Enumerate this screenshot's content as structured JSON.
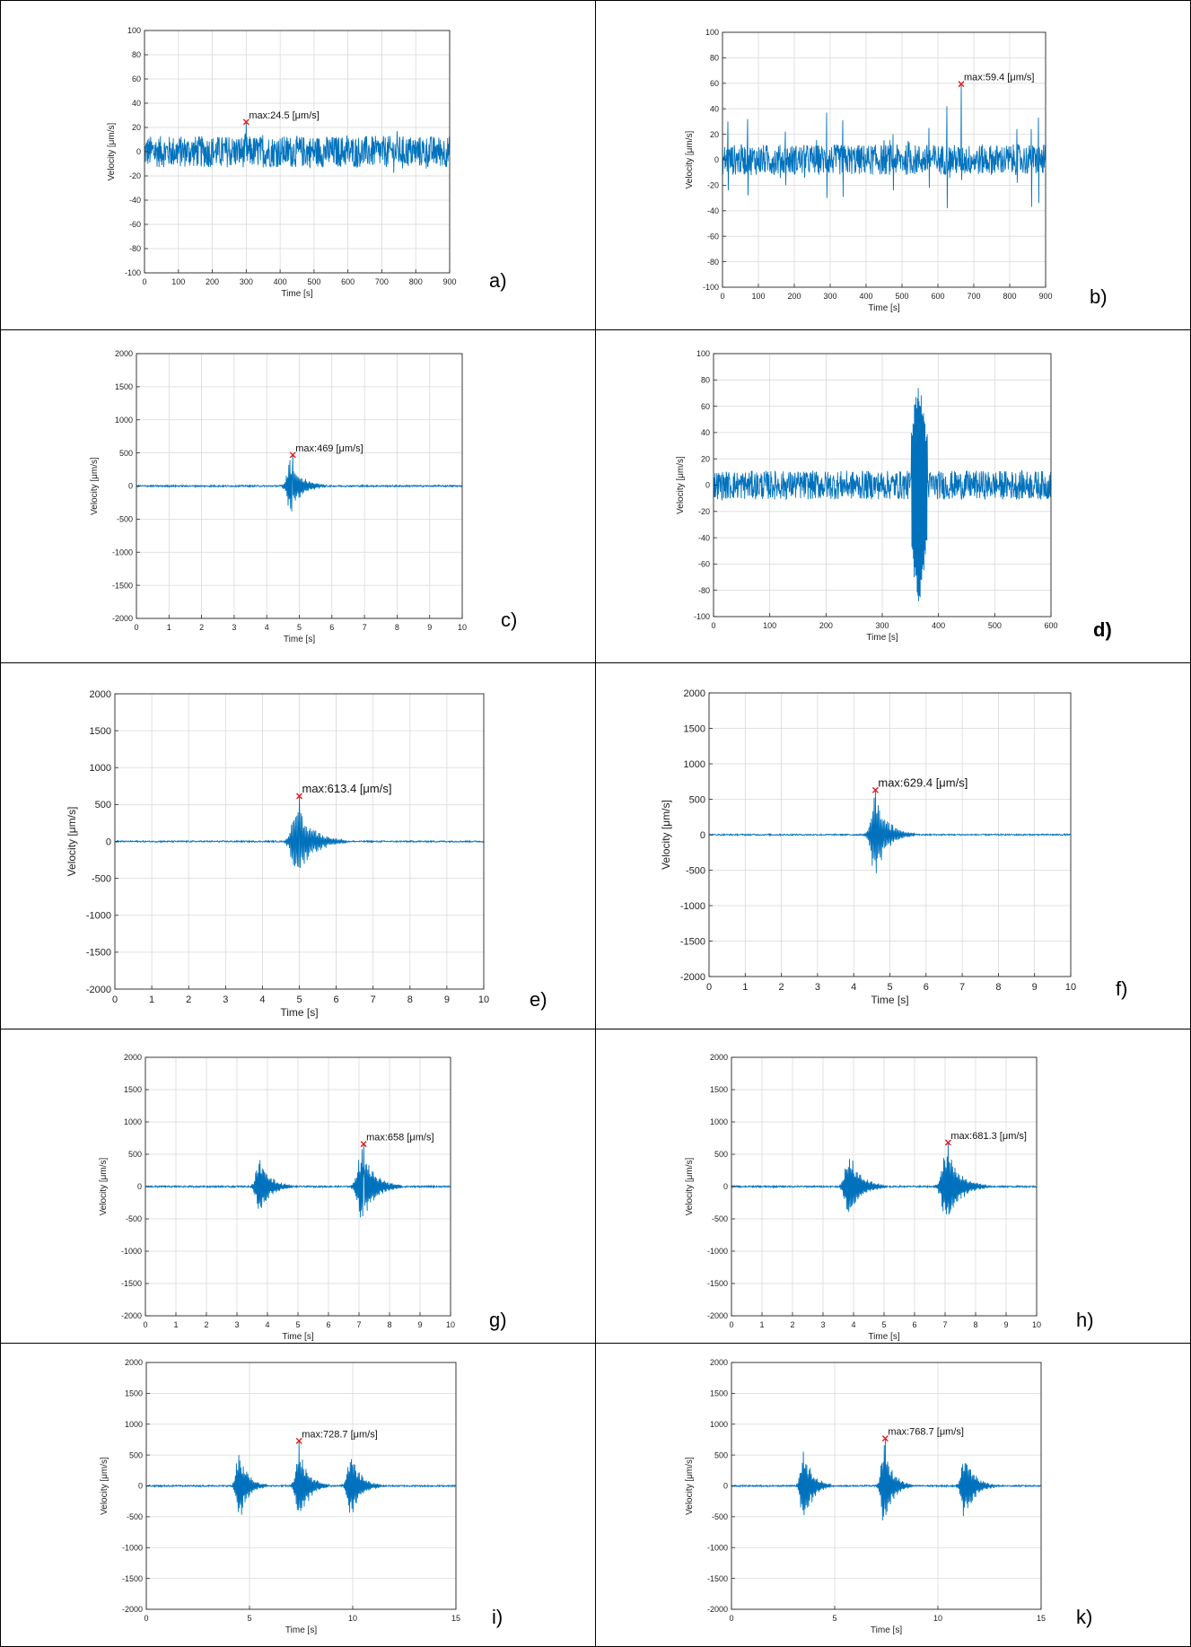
{
  "colors": {
    "signal": "#0072bd",
    "marker": "#e41a1c",
    "grid": "#d9d9d9",
    "axis": "#262626",
    "border": "#000000"
  },
  "chart_data": [
    {
      "id": "a",
      "panel_label": "a)",
      "label_bold": false,
      "type": "line",
      "xlabel": "Time [s]",
      "ylabel": "Velocity [μm/s]",
      "xlim": [
        0,
        900
      ],
      "ylim": [
        -100,
        100
      ],
      "xticks": [
        0,
        100,
        200,
        300,
        400,
        500,
        600,
        700,
        800,
        900
      ],
      "yticks": [
        -100,
        -80,
        -60,
        -40,
        -20,
        0,
        20,
        40,
        60,
        80,
        100
      ],
      "annotation": "max:24.5 [μm/s]",
      "max_point": {
        "x": 300,
        "y": 24.5
      },
      "signal": {
        "kind": "noise",
        "amp": 13,
        "spikes": []
      }
    },
    {
      "id": "b",
      "panel_label": "b)",
      "label_bold": false,
      "type": "line",
      "xlabel": "Time [s]",
      "ylabel": "Velocity [μm/s]",
      "xlim": [
        0,
        900
      ],
      "ylim": [
        -100,
        100
      ],
      "xticks": [
        0,
        100,
        200,
        300,
        400,
        500,
        600,
        700,
        800,
        900
      ],
      "yticks": [
        -100,
        -80,
        -60,
        -40,
        -20,
        0,
        20,
        40,
        60,
        80,
        100
      ],
      "annotation": "max:59.4 [μm/s]",
      "max_point": {
        "x": 665,
        "y": 59.4
      },
      "signal": {
        "kind": "noise",
        "amp": 12,
        "spikes": [
          [
            15,
            30,
            -24
          ],
          [
            70,
            32,
            -28
          ],
          [
            175,
            22,
            -20
          ],
          [
            290,
            37,
            -30
          ],
          [
            335,
            31,
            -29
          ],
          [
            475,
            20,
            -24
          ],
          [
            575,
            25,
            -22
          ],
          [
            625,
            42,
            -38
          ],
          [
            665,
            59.4,
            -16
          ],
          [
            820,
            24,
            -18
          ],
          [
            860,
            24,
            -37
          ],
          [
            880,
            33,
            -34
          ]
        ]
      }
    },
    {
      "id": "c",
      "panel_label": "c)",
      "label_bold": false,
      "type": "line",
      "xlabel": "Time [s]",
      "ylabel": "Velocity [μm/s]",
      "xlim": [
        0,
        10
      ],
      "ylim": [
        -2000,
        2000
      ],
      "xticks": [
        0,
        1,
        2,
        3,
        4,
        5,
        6,
        7,
        8,
        9,
        10
      ],
      "yticks": [
        -2000,
        -1500,
        -1000,
        -500,
        0,
        500,
        1000,
        1500,
        2000
      ],
      "annotation": "max:469 [μm/s]",
      "max_point": {
        "x": 4.8,
        "y": 469
      },
      "signal": {
        "kind": "bursts",
        "noise": 12,
        "bursts": [
          [
            4.75,
            430,
            0.45
          ]
        ]
      }
    },
    {
      "id": "d",
      "panel_label": "d)",
      "label_bold": true,
      "type": "line",
      "xlabel": "Time [s]",
      "ylabel": "Velocity [μm/s]",
      "xlim": [
        0,
        600
      ],
      "ylim": [
        -100,
        100
      ],
      "xticks": [
        0,
        100,
        200,
        300,
        400,
        500,
        600
      ],
      "yticks": [
        -100,
        -80,
        -60,
        -40,
        -20,
        0,
        20,
        40,
        60,
        80,
        100
      ],
      "annotation": "",
      "max_point": null,
      "signal": {
        "kind": "noise_block",
        "amp": 11,
        "block": [
          352,
          380,
          75,
          -90
        ]
      }
    },
    {
      "id": "e",
      "panel_label": "e)",
      "label_bold": false,
      "type": "line",
      "xlabel": "Time [s]",
      "ylabel": "Velocity [μm/s]",
      "xlim": [
        0,
        10
      ],
      "ylim": [
        -2000,
        2000
      ],
      "xticks": [
        0,
        1,
        2,
        3,
        4,
        5,
        6,
        7,
        8,
        9,
        10
      ],
      "yticks": [
        -2000,
        -1500,
        -1000,
        -500,
        0,
        500,
        1000,
        1500,
        2000
      ],
      "annotation": "max:613.4 [μm/s]",
      "max_point": {
        "x": 5.0,
        "y": 613.4
      },
      "signal": {
        "kind": "bursts",
        "noise": 10,
        "bursts": [
          [
            4.95,
            560,
            0.55
          ]
        ]
      }
    },
    {
      "id": "f",
      "panel_label": "f)",
      "label_bold": false,
      "type": "line",
      "xlabel": "Time [s]",
      "ylabel": "Velocity [μm/s]",
      "xlim": [
        0,
        10
      ],
      "ylim": [
        -2000,
        2000
      ],
      "xticks": [
        0,
        1,
        2,
        3,
        4,
        5,
        6,
        7,
        8,
        9,
        10
      ],
      "yticks": [
        -2000,
        -1500,
        -1000,
        -500,
        0,
        500,
        1000,
        1500,
        2000
      ],
      "annotation": "max:629.4 [μm/s]",
      "max_point": {
        "x": 4.6,
        "y": 629.4
      },
      "signal": {
        "kind": "bursts",
        "noise": 10,
        "bursts": [
          [
            4.6,
            600,
            0.45
          ]
        ]
      }
    },
    {
      "id": "g",
      "panel_label": "g)",
      "label_bold": false,
      "type": "line",
      "xlabel": "Time [s]",
      "ylabel": "Velocity [μm/s]",
      "xlim": [
        0,
        10
      ],
      "ylim": [
        -2000,
        2000
      ],
      "xticks": [
        0,
        1,
        2,
        3,
        4,
        5,
        6,
        7,
        8,
        9,
        10
      ],
      "yticks": [
        -2000,
        -1500,
        -1000,
        -500,
        0,
        500,
        1000,
        1500,
        2000
      ],
      "annotation": "max:658 [μm/s]",
      "max_point": {
        "x": 7.15,
        "y": 658
      },
      "signal": {
        "kind": "bursts",
        "noise": 12,
        "bursts": [
          [
            3.75,
            470,
            0.45
          ],
          [
            7.1,
            620,
            0.55
          ]
        ]
      }
    },
    {
      "id": "h",
      "panel_label": "h)",
      "label_bold": false,
      "type": "line",
      "xlabel": "Time [s]",
      "ylabel": "Velocity [μm/s]",
      "xlim": [
        0,
        10
      ],
      "ylim": [
        -2000,
        2000
      ],
      "xticks": [
        0,
        1,
        2,
        3,
        4,
        5,
        6,
        7,
        8,
        9,
        10
      ],
      "yticks": [
        -2000,
        -1500,
        -1000,
        -500,
        0,
        500,
        1000,
        1500,
        2000
      ],
      "annotation": "max:681.3 [μm/s]",
      "max_point": {
        "x": 7.1,
        "y": 681.3
      },
      "signal": {
        "kind": "bursts",
        "noise": 12,
        "bursts": [
          [
            3.85,
            560,
            0.5
          ],
          [
            7.05,
            640,
            0.55
          ]
        ]
      }
    },
    {
      "id": "i",
      "panel_label": "i)",
      "label_bold": false,
      "type": "line",
      "xlabel": "Time [s]",
      "ylabel": "Velocity [μm/s]",
      "xlim": [
        0,
        15
      ],
      "ylim": [
        -2000,
        2000
      ],
      "xticks": [
        0,
        5,
        10,
        15
      ],
      "yticks": [
        -2000,
        -1500,
        -1000,
        -500,
        0,
        500,
        1000,
        1500,
        2000
      ],
      "annotation": "max:728.7 [μm/s]",
      "max_point": {
        "x": 7.4,
        "y": 728.7
      },
      "signal": {
        "kind": "bursts",
        "noise": 12,
        "bursts": [
          [
            4.5,
            620,
            0.55
          ],
          [
            7.4,
            690,
            0.6
          ],
          [
            9.9,
            600,
            0.6
          ]
        ]
      }
    },
    {
      "id": "k",
      "panel_label": "k)",
      "label_bold": false,
      "type": "line",
      "xlabel": "Time [s]",
      "ylabel": "Velocity [μm/s]",
      "xlim": [
        0,
        15
      ],
      "ylim": [
        -2000,
        2000
      ],
      "xticks": [
        0,
        5,
        10,
        15
      ],
      "yticks": [
        -2000,
        -1500,
        -1000,
        -500,
        0,
        500,
        1000,
        1500,
        2000
      ],
      "annotation": "max:768.7 [μm/s]",
      "max_point": {
        "x": 7.45,
        "y": 768.7
      },
      "signal": {
        "kind": "bursts",
        "noise": 12,
        "bursts": [
          [
            3.5,
            680,
            0.55
          ],
          [
            7.4,
            730,
            0.55
          ],
          [
            11.3,
            600,
            0.6
          ]
        ]
      }
    }
  ]
}
